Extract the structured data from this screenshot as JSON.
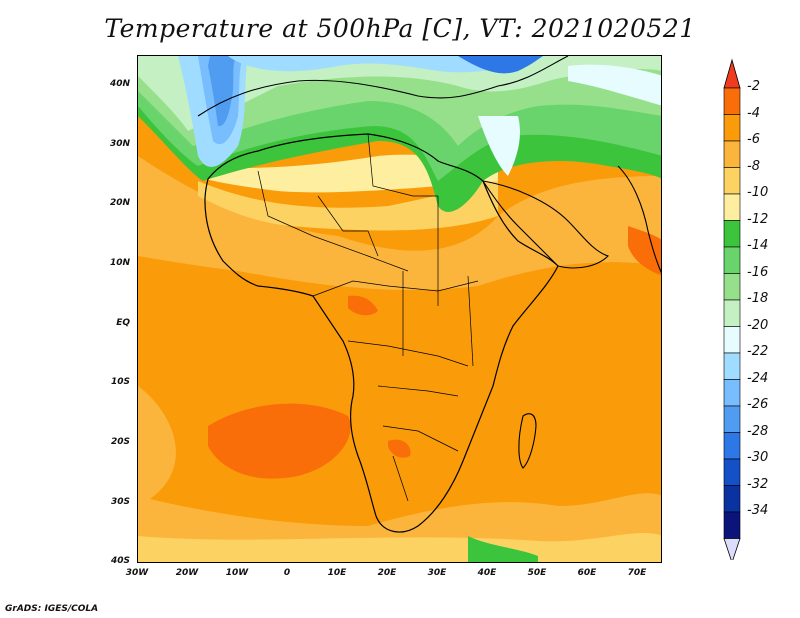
{
  "title": "Temperature at 500hPa [C], VT: 2021020521",
  "footer": "GrADS: IGES/COLA",
  "map": {
    "lon_range": [
      -30,
      75
    ],
    "lat_range": [
      -40,
      45
    ],
    "lat_ticks": [
      "40N",
      "30N",
      "20N",
      "10N",
      "EQ",
      "10S",
      "20S",
      "30S",
      "40S"
    ],
    "lon_ticks": [
      "30W",
      "20W",
      "10W",
      "0",
      "10E",
      "20E",
      "30E",
      "40E",
      "50E",
      "60E",
      "70E"
    ],
    "lat_tick_values": [
      40,
      30,
      20,
      10,
      0,
      -10,
      -20,
      -30,
      -40
    ],
    "lon_tick_values": [
      -30,
      -20,
      -10,
      0,
      10,
      20,
      30,
      40,
      50,
      60,
      70
    ]
  },
  "colorbar": {
    "labels": [
      "-2",
      "-4",
      "-6",
      "-8",
      "-10",
      "-12",
      "-14",
      "-16",
      "-18",
      "-20",
      "-22",
      "-24",
      "-26",
      "-28",
      "-30",
      "-32",
      "-34"
    ],
    "colors": [
      "#f03c1e",
      "#fa6e0a",
      "#fa9b0a",
      "#fcb53c",
      "#fcd263",
      "#fdeea0",
      "#3cc43c",
      "#69d46b",
      "#96e08c",
      "#c4f0c4",
      "#e6fcff",
      "#a0dcff",
      "#78beff",
      "#509cf0",
      "#2d78e6",
      "#1450c8",
      "#0a32a0",
      "#0a147a"
    ]
  }
}
